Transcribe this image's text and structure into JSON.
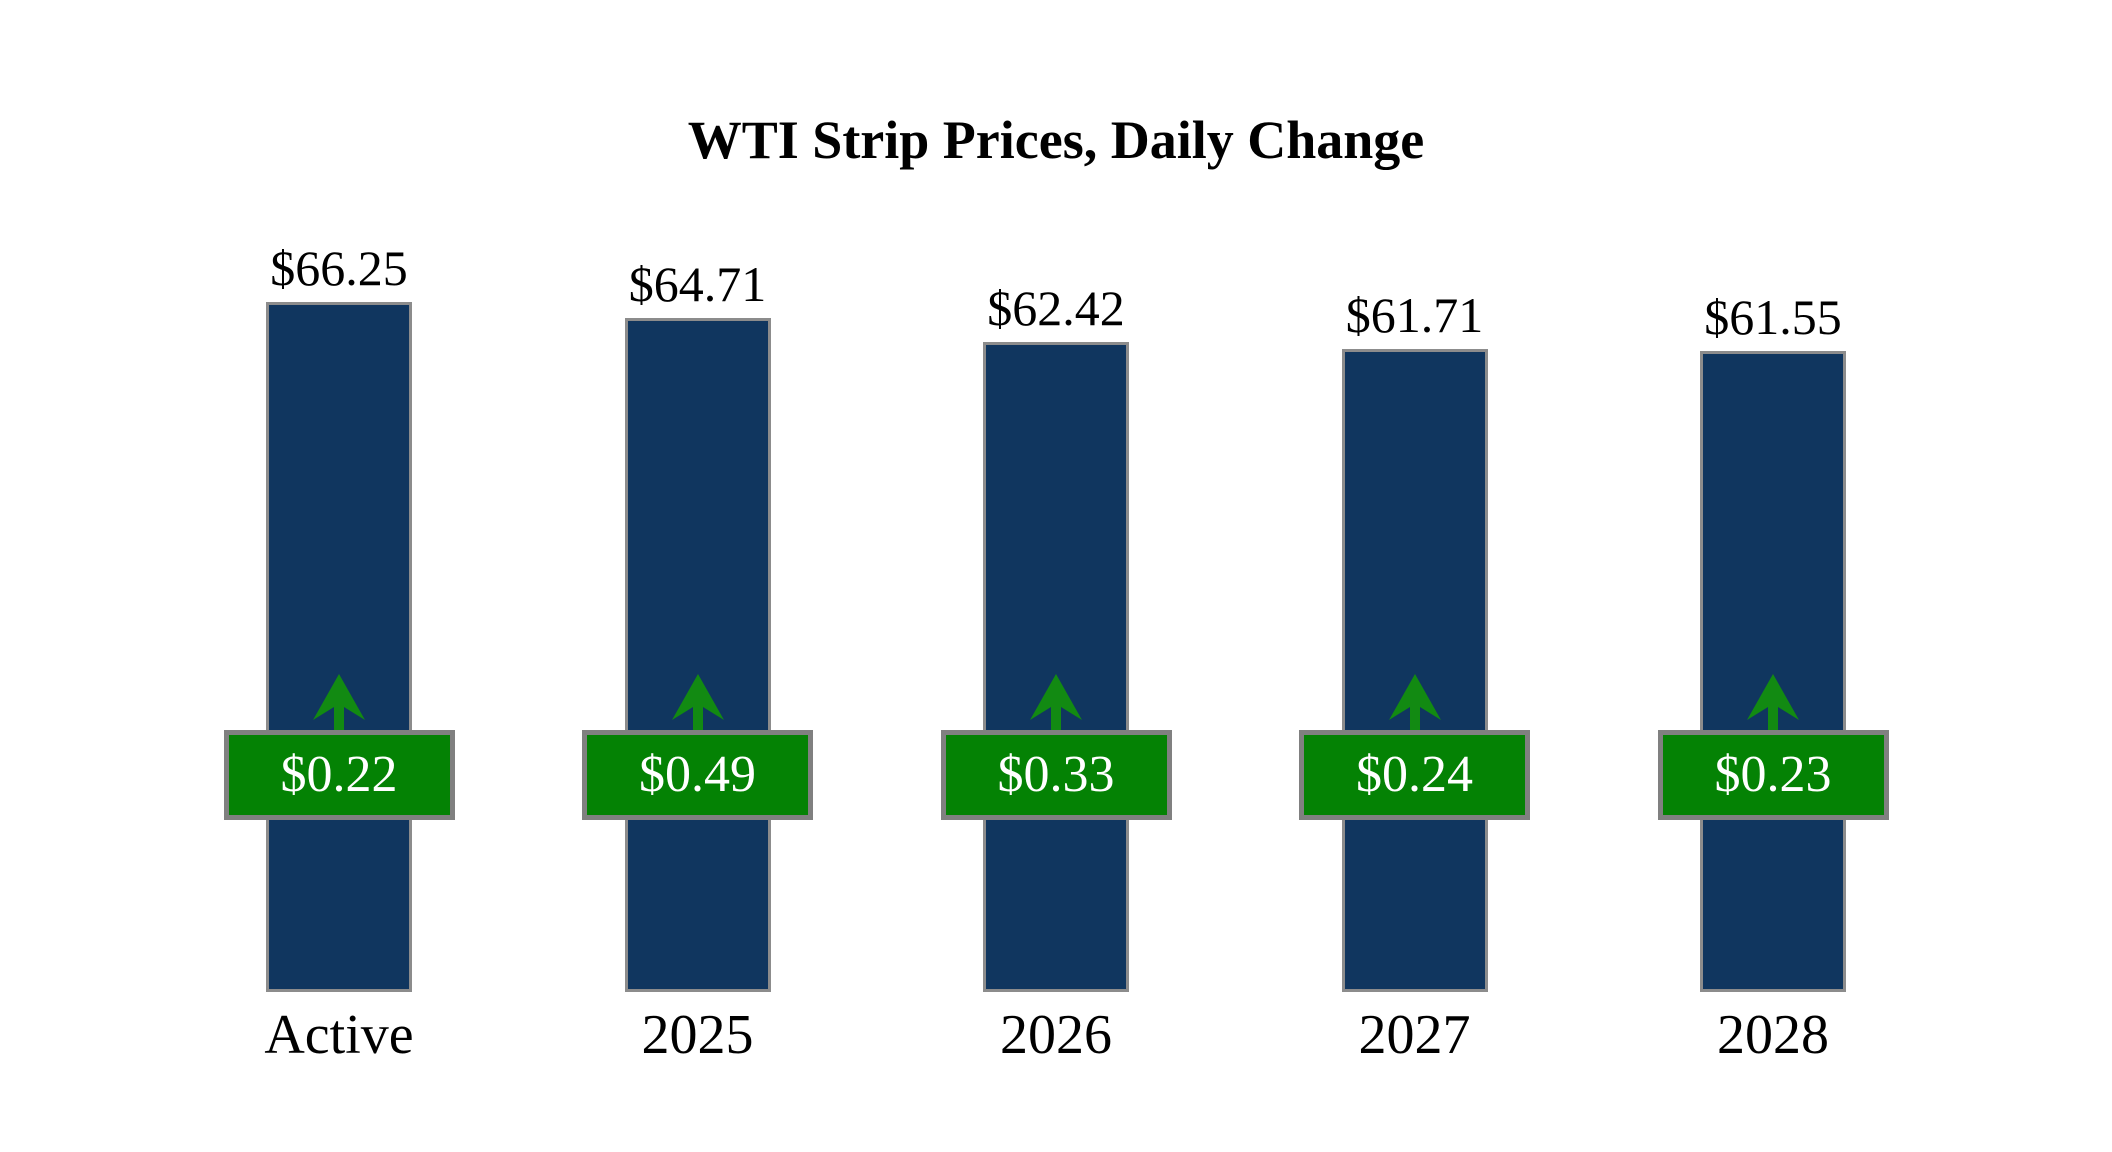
{
  "title": "WTI Strip Prices, Daily Change",
  "chart_data": {
    "type": "bar",
    "title": "WTI Strip Prices, Daily Change",
    "categories": [
      "Active",
      "2025",
      "2026",
      "2027",
      "2028"
    ],
    "series": [
      {
        "name": "strip_price",
        "values": [
          66.25,
          64.71,
          62.42,
          61.71,
          61.55
        ],
        "labels": [
          "$66.25",
          "$64.71",
          "$62.42",
          "$61.71",
          "$61.55"
        ]
      },
      {
        "name": "daily_change",
        "values": [
          0.22,
          0.49,
          0.33,
          0.24,
          0.23
        ],
        "labels": [
          "$0.22",
          "$0.49",
          "$0.33",
          "$0.24",
          "$0.23"
        ],
        "direction": "up"
      }
    ],
    "xlabel": "",
    "ylabel": "",
    "ylim": [
      0,
      70
    ],
    "grid": false,
    "legend_position": "none",
    "annotation": "Green badges with up arrows show the daily change for each strip"
  },
  "colors": {
    "background": "#FFFFFF",
    "bar_fill": "#10365F",
    "bar_border": "#8C8C8C",
    "badge_fill": "#048204",
    "badge_border": "#808080",
    "badge_text": "#FFFFFF",
    "arrow": "#128A12",
    "label_text": "#000000"
  }
}
